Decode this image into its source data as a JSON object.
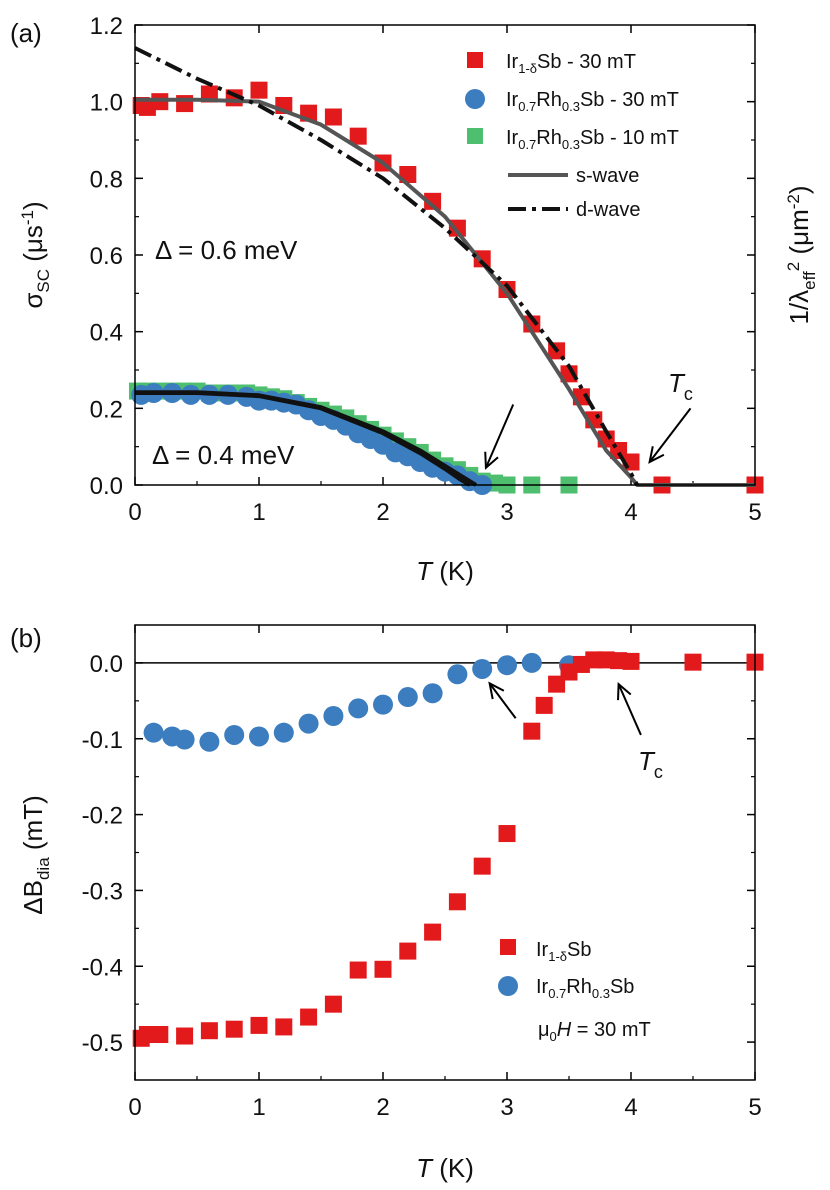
{
  "chart_data": [
    {
      "panel_label": "(a)",
      "type": "scatter",
      "xlabel": "T (K)",
      "ylabel_left": "σSC (μs-1)",
      "ylabel_right": "1/λeff2 (μm-2)",
      "xlim": [
        0,
        5
      ],
      "ylim": [
        0,
        1.2
      ],
      "x_ticks": [
        "0",
        "1",
        "2",
        "3",
        "4",
        "5"
      ],
      "y_ticks": [
        "0.0",
        "0.2",
        "0.4",
        "0.6",
        "0.8",
        "1.0",
        "1.2"
      ],
      "grid": false,
      "legend_position": "top-right",
      "legend": [
        {
          "base": "Ir",
          "sub1": "1-δ",
          "mid": "Sb",
          "sub2": "",
          "tail": " - 30 mT",
          "kind": "square",
          "color": "#e31a1c"
        },
        {
          "base": "Ir",
          "sub1": "0.7",
          "mid": "Rh",
          "sub2": "0.3",
          "tail": "Sb - 30 mT",
          "kind": "circle",
          "color": "#3b7dbf"
        },
        {
          "base": "Ir",
          "sub1": "0.7",
          "mid": "Rh",
          "sub2": "0.3",
          "tail": "Sb - 10 mT",
          "kind": "square",
          "color": "#4dbf6f"
        },
        {
          "base": "s-wave",
          "sub1": "",
          "mid": "",
          "sub2": "",
          "tail": "",
          "kind": "solid",
          "color": "#555555"
        },
        {
          "base": "d-wave",
          "sub1": "",
          "mid": "",
          "sub2": "",
          "tail": "",
          "kind": "dashdot",
          "color": "#111111"
        }
      ],
      "annotations": {
        "gap_ir": "Δ = 0.6 meV",
        "gap_ir_color": "#e31a1c",
        "gap_rh": "Δ = 0.4 meV",
        "gap_rh_color": "#3b6ea5",
        "tc_label": "T",
        "tc_sub": "c"
      },
      "series": [
        {
          "name": "Ir1-δSb - 30 mT",
          "marker": "square",
          "color": "#e31a1c",
          "x": [
            0.05,
            0.1,
            0.2,
            0.4,
            0.6,
            0.8,
            1.0,
            1.2,
            1.4,
            1.6,
            1.8,
            2.0,
            2.2,
            2.4,
            2.6,
            2.8,
            3.0,
            3.2,
            3.4,
            3.5,
            3.6,
            3.7,
            3.8,
            3.9,
            4.0,
            4.25,
            5.0
          ],
          "y": [
            0.99,
            0.985,
            1.0,
            0.995,
            1.02,
            1.01,
            1.03,
            0.99,
            0.97,
            0.96,
            0.91,
            0.84,
            0.81,
            0.74,
            0.67,
            0.59,
            0.51,
            0.42,
            0.35,
            0.29,
            0.23,
            0.17,
            0.12,
            0.09,
            0.06,
            0.0,
            0.0
          ]
        },
        {
          "name": "Ir0.7Rh0.3Sb - 30 mT",
          "marker": "circle",
          "color": "#3b7dbf",
          "x": [
            0.05,
            0.15,
            0.3,
            0.45,
            0.6,
            0.75,
            0.9,
            1.0,
            1.1,
            1.2,
            1.3,
            1.4,
            1.5,
            1.6,
            1.7,
            1.8,
            1.9,
            2.0,
            2.1,
            2.2,
            2.3,
            2.4,
            2.5,
            2.6,
            2.7,
            2.8
          ],
          "y": [
            0.235,
            0.24,
            0.24,
            0.235,
            0.235,
            0.235,
            0.23,
            0.22,
            0.22,
            0.215,
            0.21,
            0.195,
            0.18,
            0.17,
            0.155,
            0.135,
            0.12,
            0.105,
            0.085,
            0.075,
            0.06,
            0.045,
            0.035,
            0.025,
            0.01,
            0.0
          ]
        },
        {
          "name": "Ir0.7Rh0.3Sb - 10 mT",
          "marker": "square",
          "color": "#4dbf6f",
          "x": [
            0.02,
            0.1,
            0.2,
            0.3,
            0.4,
            0.5,
            0.6,
            0.7,
            0.8,
            0.9,
            1.0,
            1.1,
            1.2,
            1.3,
            1.4,
            1.5,
            1.6,
            1.7,
            1.8,
            1.9,
            2.0,
            2.1,
            2.2,
            2.3,
            2.4,
            2.5,
            2.6,
            2.7,
            2.8,
            2.9,
            3.0,
            3.2,
            3.5
          ],
          "y": [
            0.245,
            0.245,
            0.245,
            0.245,
            0.245,
            0.245,
            0.24,
            0.24,
            0.24,
            0.24,
            0.235,
            0.23,
            0.225,
            0.215,
            0.205,
            0.195,
            0.185,
            0.175,
            0.16,
            0.145,
            0.13,
            0.115,
            0.1,
            0.085,
            0.065,
            0.05,
            0.04,
            0.025,
            0.01,
            0.005,
            0.0,
            0.0,
            0.0
          ]
        },
        {
          "name": "s-wave",
          "line": "solid",
          "color": "#555555",
          "width": 4,
          "x": [
            0,
            0.5,
            1.0,
            1.5,
            2.0,
            2.5,
            3.0,
            3.5,
            3.8,
            4.0,
            4.05,
            5.0
          ],
          "y": [
            1.005,
            1.005,
            1.0,
            0.94,
            0.84,
            0.7,
            0.5,
            0.25,
            0.09,
            0.02,
            0.0,
            0.0
          ]
        },
        {
          "name": "d-wave",
          "line": "dashdot",
          "color": "#111111",
          "width": 4,
          "x": [
            0,
            0.5,
            1.0,
            1.5,
            2.0,
            2.5,
            3.0,
            3.5,
            3.8,
            4.0,
            4.05
          ],
          "y": [
            1.14,
            1.06,
            0.99,
            0.9,
            0.8,
            0.67,
            0.52,
            0.31,
            0.14,
            0.03,
            0.0
          ]
        },
        {
          "name": "s-wave Ir0.7Rh0.3Sb 30 mT",
          "line": "solid",
          "color": "#111111",
          "width": 4,
          "x": [
            0,
            0.5,
            1.0,
            1.5,
            2.0,
            2.3,
            2.5,
            2.62,
            2.68,
            2.7
          ],
          "y": [
            0.24,
            0.24,
            0.232,
            0.2,
            0.135,
            0.083,
            0.042,
            0.015,
            0.004,
            0.0
          ]
        },
        {
          "name": "s-wave Ir0.7Rh0.3Sb 10 mT",
          "line": "solid",
          "color": "#111111",
          "width": 4,
          "x": [
            0,
            0.5,
            1.0,
            1.5,
            2.0,
            2.3,
            2.5,
            2.65,
            2.73,
            2.75
          ],
          "y": [
            0.242,
            0.242,
            0.234,
            0.203,
            0.14,
            0.09,
            0.05,
            0.02,
            0.004,
            0.0
          ]
        }
      ],
      "arrows": [
        {
          "from": [
            3.05,
            0.21
          ],
          "to": [
            2.83,
            0.045
          ]
        },
        {
          "from": [
            4.48,
            0.2
          ],
          "to": [
            4.15,
            0.06
          ]
        }
      ]
    },
    {
      "panel_label": "(b)",
      "type": "scatter",
      "xlabel": "T (K)",
      "ylabel": "ΔBdia (mT)",
      "xlim": [
        0,
        5
      ],
      "ylim": [
        -0.55,
        0.05
      ],
      "x_ticks": [
        "0",
        "1",
        "2",
        "3",
        "4",
        "5"
      ],
      "y_ticks": [
        "-0.5",
        "-0.4",
        "-0.3",
        "-0.2",
        "-0.1",
        "0.0"
      ],
      "grid": false,
      "zero_line": true,
      "legend_position": "bottom-right",
      "legend": [
        {
          "base": "Ir",
          "sub1": "1-δ",
          "mid": "Sb",
          "sub2": "",
          "tail": "",
          "kind": "square",
          "color": "#e31a1c"
        },
        {
          "base": "Ir",
          "sub1": "0.7",
          "mid": "Rh",
          "sub2": "0.3",
          "tail": "Sb",
          "kind": "circle",
          "color": "#3b7dbf"
        }
      ],
      "field_note": {
        "mu": "μ",
        "sub": "0",
        "h": "H",
        "rest": " = 30 mT"
      },
      "annotations": {
        "tc_label": "T",
        "tc_sub": "c"
      },
      "series": [
        {
          "name": "Ir1-δSb",
          "marker": "square",
          "color": "#e31a1c",
          "x": [
            0.05,
            0.1,
            0.2,
            0.4,
            0.6,
            0.8,
            1.0,
            1.2,
            1.4,
            1.6,
            1.8,
            2.0,
            2.2,
            2.4,
            2.6,
            2.8,
            3.0,
            3.2,
            3.3,
            3.4,
            3.5,
            3.6,
            3.7,
            3.8,
            3.9,
            4.0,
            4.5,
            5.0
          ],
          "y": [
            -0.495,
            -0.49,
            -0.49,
            -0.492,
            -0.485,
            -0.483,
            -0.478,
            -0.48,
            -0.467,
            -0.45,
            -0.405,
            -0.404,
            -0.38,
            -0.355,
            -0.315,
            -0.268,
            -0.225,
            -0.09,
            -0.056,
            -0.028,
            -0.012,
            -0.002,
            0.004,
            0.004,
            0.003,
            0.002,
            0.001,
            0.001
          ]
        },
        {
          "name": "Ir0.7Rh0.3Sb",
          "marker": "circle",
          "color": "#3b7dbf",
          "x": [
            0.15,
            0.3,
            0.4,
            0.6,
            0.8,
            1.0,
            1.2,
            1.4,
            1.6,
            1.8,
            2.0,
            2.2,
            2.4,
            2.6,
            2.8,
            3.0,
            3.2,
            3.5
          ],
          "y": [
            -0.092,
            -0.097,
            -0.101,
            -0.104,
            -0.095,
            -0.097,
            -0.092,
            -0.08,
            -0.07,
            -0.06,
            -0.055,
            -0.045,
            -0.04,
            -0.015,
            -0.008,
            -0.003,
            0.0,
            -0.003
          ]
        }
      ],
      "arrows": [
        {
          "from": [
            3.07,
            -0.073
          ],
          "to": [
            2.86,
            -0.027
          ]
        },
        {
          "from": [
            4.08,
            -0.095
          ],
          "to": [
            3.9,
            -0.028
          ]
        }
      ]
    }
  ]
}
